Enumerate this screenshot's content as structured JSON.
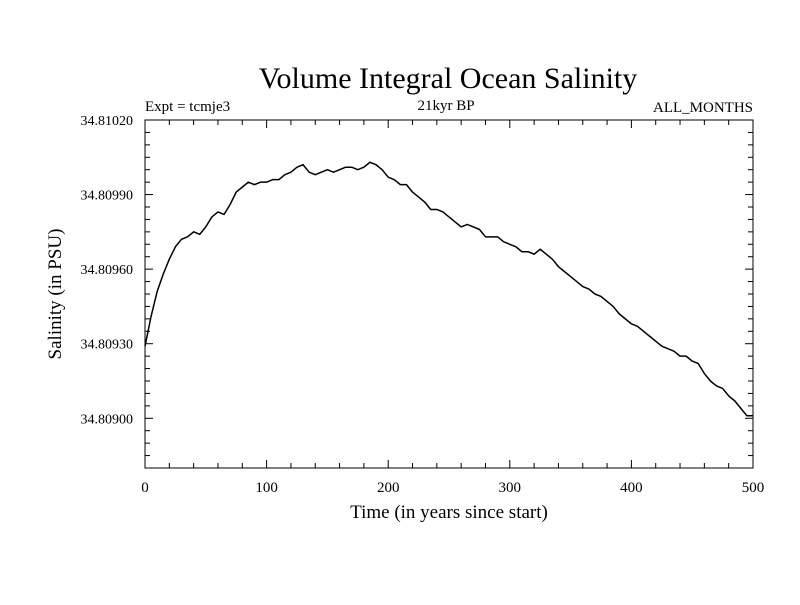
{
  "chart_data": {
    "type": "line",
    "title": "Volume Integral Ocean Salinity",
    "subtitle_left": "Expt = tcmje3",
    "subtitle_center": "21kyr BP",
    "subtitle_right": "ALL_MONTHS",
    "xlabel": "Time (in years since start)",
    "ylabel": "Salinity (in PSU)",
    "xlim": [
      0,
      500
    ],
    "ylim": [
      34.8088,
      34.8102
    ],
    "x_ticks": [
      0,
      100,
      200,
      300,
      400,
      500
    ],
    "x_tick_labels": [
      "0",
      "100",
      "200",
      "300",
      "400",
      "500"
    ],
    "y_ticks": [
      34.809,
      34.8093,
      34.8096,
      34.8099,
      34.8102
    ],
    "y_tick_labels": [
      "34.80900",
      "34.80930",
      "34.80960",
      "34.80990",
      "34.81020"
    ],
    "grid": false,
    "series": [
      {
        "color": "#000000",
        "x": [
          0,
          5,
          10,
          15,
          20,
          25,
          30,
          35,
          40,
          45,
          50,
          55,
          60,
          65,
          70,
          75,
          80,
          85,
          90,
          95,
          100,
          105,
          110,
          115,
          120,
          125,
          130,
          135,
          140,
          145,
          150,
          155,
          160,
          165,
          170,
          175,
          180,
          185,
          190,
          195,
          200,
          205,
          210,
          215,
          220,
          225,
          230,
          235,
          240,
          245,
          250,
          255,
          260,
          265,
          270,
          275,
          280,
          285,
          290,
          295,
          300,
          305,
          310,
          315,
          320,
          325,
          330,
          335,
          340,
          345,
          350,
          355,
          360,
          365,
          370,
          375,
          380,
          385,
          390,
          395,
          400,
          405,
          410,
          415,
          420,
          425,
          430,
          435,
          440,
          445,
          450,
          455,
          460,
          465,
          470,
          475,
          480,
          485,
          490,
          495,
          500
        ],
        "y": [
          34.80929,
          34.80941,
          34.80951,
          34.80958,
          34.80964,
          34.80969,
          34.80972,
          34.80973,
          34.80975,
          34.80974,
          34.80977,
          34.80981,
          34.80983,
          34.80982,
          34.80986,
          34.80991,
          34.80993,
          34.80995,
          34.80994,
          34.80995,
          34.80995,
          34.80996,
          34.80996,
          34.80998,
          34.80999,
          34.81001,
          34.81002,
          34.80999,
          34.80998,
          34.80999,
          34.81,
          34.80999,
          34.81,
          34.81001,
          34.81001,
          34.81,
          34.81001,
          34.81003,
          34.81002,
          34.81,
          34.80997,
          34.80996,
          34.80994,
          34.80994,
          34.80991,
          34.80989,
          34.80987,
          34.80984,
          34.80984,
          34.80983,
          34.80981,
          34.80979,
          34.80977,
          34.80978,
          34.80977,
          34.80976,
          34.80973,
          34.80973,
          34.80973,
          34.80971,
          34.8097,
          34.80969,
          34.80967,
          34.80967,
          34.80966,
          34.80968,
          34.80966,
          34.80964,
          34.80961,
          34.80959,
          34.80957,
          34.80955,
          34.80953,
          34.80952,
          34.8095,
          34.80949,
          34.80947,
          34.80945,
          34.80942,
          34.8094,
          34.80938,
          34.80937,
          34.80935,
          34.80933,
          34.80931,
          34.80929,
          34.80928,
          34.80927,
          34.80925,
          34.80925,
          34.80923,
          34.80922,
          34.80918,
          34.80915,
          34.80913,
          34.80912,
          34.80909,
          34.80907,
          34.80904,
          34.80901,
          34.80901
        ]
      }
    ]
  }
}
